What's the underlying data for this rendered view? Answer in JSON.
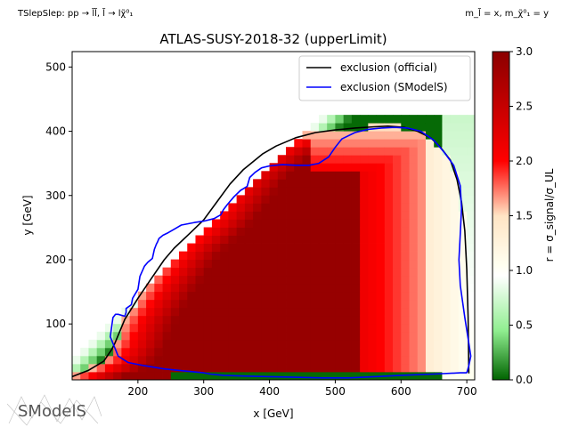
{
  "header": {
    "process": "TSlepSlep: pp → l̃l̃, l̃ → lχ̃⁰₁",
    "mass_assignment": "m_l̃ = x, m_χ̃⁰₁ = y"
  },
  "logo_text": "SModelS",
  "chart_data": {
    "type": "heatmap",
    "title": "ATLAS-SUSY-2018-32 (upperLimit)",
    "xlabel": "x [GeV]",
    "ylabel": "y [GeV]",
    "xlim": [
      100,
      712
    ],
    "ylim": [
      13,
      524
    ],
    "xticks": [
      200,
      300,
      400,
      500,
      600,
      700
    ],
    "yticks": [
      100,
      200,
      300,
      400,
      500
    ],
    "colorbar": {
      "label": "r = σ_signal/σ_UL",
      "range": [
        0.0,
        3.0
      ],
      "ticks": [
        0.0,
        0.5,
        1.0,
        1.5,
        2.0,
        2.5,
        3.0
      ],
      "tick_labels": [
        "0.0",
        "0.5",
        "1.0",
        "1.5",
        "2.0",
        "2.5",
        "3.0"
      ],
      "colormap": [
        [
          0.0,
          "#006400"
        ],
        [
          0.45,
          "#90EE90"
        ],
        [
          0.95,
          "#FFFFFF"
        ],
        [
          1.05,
          "#FFFFF0"
        ],
        [
          1.5,
          "#FFE4C4"
        ],
        [
          2.0,
          "#FF0000"
        ],
        [
          3.0,
          "#8B0000"
        ]
      ]
    },
    "legend": {
      "position": "top-right",
      "entries": [
        "exclusion (official)",
        "exclusion (SModelS)"
      ]
    },
    "series": [
      {
        "name": "exclusion (official)",
        "color": "#000000",
        "x": [
          100,
          125,
          148,
          160,
          165,
          180,
          200,
          220,
          240,
          255,
          280,
          300,
          320,
          340,
          360,
          390,
          410,
          440,
          470,
          500,
          530,
          560,
          580,
          605,
          625,
          645,
          660,
          675,
          685,
          692,
          697,
          700,
          702,
          703
        ],
        "y": [
          18,
          28,
          42,
          60,
          70,
          107,
          140,
          170,
          200,
          218,
          242,
          262,
          290,
          318,
          340,
          365,
          377,
          390,
          398,
          402,
          405,
          407,
          408,
          406,
          400,
          390,
          375,
          355,
          325,
          290,
          245,
          185,
          110,
          23
        ]
      },
      {
        "name": "exclusion (SModelS)",
        "color": "#0000ff",
        "x": [
          700,
          690,
          650,
          600,
          560,
          520,
          480,
          440,
          400,
          360,
          330,
          310,
          300,
          270,
          240,
          210,
          185,
          170,
          162,
          158,
          160,
          162,
          166,
          170,
          180,
          182,
          182,
          190,
          192,
          200,
          203,
          210,
          215,
          222,
          225,
          228,
          230,
          232,
          238,
          246,
          256,
          266,
          286,
          300,
          316,
          326,
          330,
          336,
          346,
          356,
          366,
          370,
          378,
          388,
          400,
          420,
          440,
          460,
          475,
          490,
          500,
          510,
          530,
          550,
          570,
          590,
          610,
          630,
          650,
          665,
          680,
          690,
          692,
          690,
          688,
          690,
          697,
          703,
          706,
          703,
          700
        ],
        "y": [
          24,
          24,
          22,
          20,
          18,
          16,
          16,
          17,
          18,
          19,
          20,
          22,
          24,
          27,
          30,
          35,
          40,
          50,
          70,
          80,
          95,
          110,
          115,
          115,
          112,
          118,
          124,
          130,
          140,
          154,
          174,
          190,
          196,
          202,
          216,
          224,
          228,
          233,
          238,
          242,
          248,
          254,
          258,
          260,
          264,
          270,
          278,
          286,
          298,
          308,
          314,
          328,
          336,
          343,
          346,
          348,
          347,
          347,
          350,
          360,
          375,
          388,
          398,
          403,
          405,
          406,
          405,
          400,
          386,
          368,
          347,
          315,
          280,
          240,
          200,
          160,
          110,
          70,
          50,
          35,
          24
        ]
      }
    ]
  }
}
